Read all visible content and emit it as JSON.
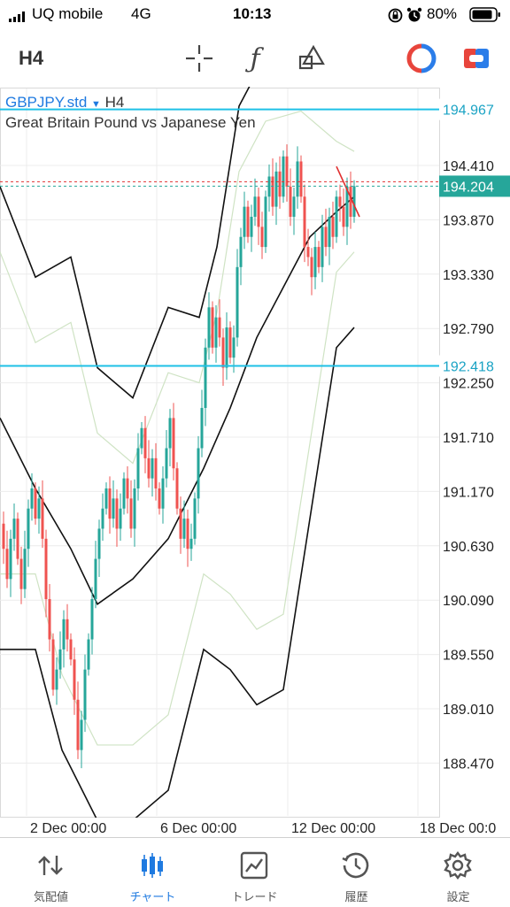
{
  "status_bar": {
    "carrier": "UQ mobile",
    "network": "4G",
    "time": "10:13",
    "battery": "80%"
  },
  "toolbar": {
    "timeframe": "H4"
  },
  "chart": {
    "symbol": "GBPJPY.std",
    "symbol_timeframe": "H4",
    "description": "Great Britain Pound vs Japanese Yen",
    "bid_price": "194.204",
    "upper_line_price": "194.967",
    "lower_line_price": "192.418",
    "price_ticks": [
      "194.410",
      "193.870",
      "193.330",
      "192.790",
      "192.250",
      "191.710",
      "191.170",
      "190.630",
      "190.090",
      "189.550",
      "189.010",
      "188.470"
    ],
    "date_labels": [
      "2 Dec 00:00",
      "6 Dec 00:00",
      "12 Dec 00:00",
      "18 Dec 00:0"
    ],
    "colors": {
      "bull": "#26a69a",
      "bear": "#ef5350",
      "level": "#1ec0e6",
      "bid_badge": "#26a69a"
    }
  },
  "tabs": [
    {
      "label": "気配値",
      "icon": "quotes-arrows-icon"
    },
    {
      "label": "チャート",
      "icon": "chart-candles-icon"
    },
    {
      "label": "トレード",
      "icon": "trade-chart-icon"
    },
    {
      "label": "履歴",
      "icon": "history-clock-icon"
    },
    {
      "label": "設定",
      "icon": "settings-gear-icon"
    }
  ]
}
